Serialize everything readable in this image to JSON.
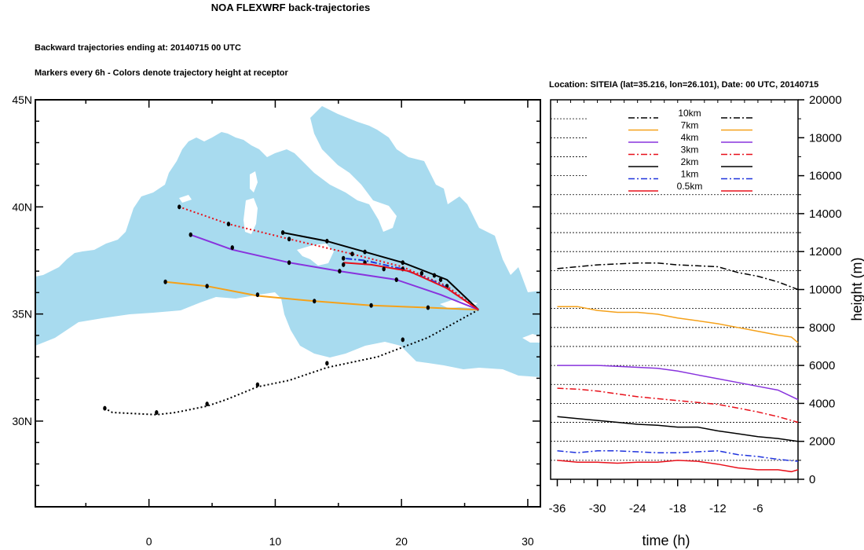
{
  "title": "NOA FLEXWRF back-trajectories",
  "subtitle1": "Backward trajectories ending at: 20140715  00 UTC",
  "subtitle2": "Markers every 6h - Colors denote trajectory height at receptor",
  "location_header": "Location: SITEIA (lat=35.216,  lon=26.101), Date: 00 UTC, 20140715",
  "chart_data": [
    {
      "type": "line",
      "kind": "trajectory-map",
      "lat_ticks": [
        "45N",
        "40N",
        "35N",
        "30N"
      ],
      "lon_ticks": [
        "0",
        "10",
        "20",
        "30"
      ],
      "lon_range": [
        -9,
        31
      ],
      "lat_range": [
        26,
        45
      ],
      "receptor": {
        "lon": 26.1,
        "lat": 35.2
      },
      "series": [
        {
          "height": "10km",
          "color": "#000000",
          "dash": "dotted",
          "points": [
            [
              26.1,
              35.2
            ],
            [
              22.1,
              33.9
            ],
            [
              18.1,
              33.0
            ],
            [
              14.1,
              32.5
            ],
            [
              11.1,
              31.9
            ],
            [
              8.6,
              31.6
            ],
            [
              6.1,
              31.0
            ],
            [
              4.6,
              30.7
            ],
            [
              2.1,
              30.4
            ],
            [
              0.6,
              30.3
            ],
            [
              -2.9,
              30.4
            ],
            [
              -3.5,
              30.6
            ]
          ],
          "markers": [
            [
              20.1,
              33.8
            ],
            [
              14.1,
              32.7
            ],
            [
              8.6,
              31.7
            ],
            [
              4.6,
              30.8
            ],
            [
              0.6,
              30.4
            ],
            [
              -3.5,
              30.6
            ]
          ]
        },
        {
          "height": "7km",
          "color": "#f5a11a",
          "dash": "solid",
          "points": [
            [
              26.1,
              35.2
            ],
            [
              22.1,
              35.3
            ],
            [
              17.6,
              35.4
            ],
            [
              13.1,
              35.6
            ],
            [
              8.6,
              35.85
            ],
            [
              4.6,
              36.3
            ],
            [
              1.3,
              36.5
            ]
          ],
          "markers": [
            [
              22.1,
              35.3
            ],
            [
              17.6,
              35.4
            ],
            [
              13.1,
              35.6
            ],
            [
              8.6,
              35.9
            ],
            [
              4.6,
              36.3
            ],
            [
              1.3,
              36.5
            ]
          ]
        },
        {
          "height": "4km",
          "color": "#8833dd",
          "dash": "solid",
          "points": [
            [
              26.1,
              35.2
            ],
            [
              23.1,
              35.9
            ],
            [
              19.6,
              36.6
            ],
            [
              15.1,
              37.0
            ],
            [
              11.1,
              37.4
            ],
            [
              6.6,
              38.0
            ],
            [
              3.3,
              38.7
            ]
          ],
          "markers": [
            [
              19.6,
              36.6
            ],
            [
              15.1,
              37.0
            ],
            [
              11.1,
              37.4
            ],
            [
              6.6,
              38.1
            ],
            [
              3.3,
              38.7
            ]
          ]
        },
        {
          "height": "3km",
          "color": "#e8101a",
          "dash": "dotted",
          "points": [
            [
              26.1,
              35.2
            ],
            [
              23.6,
              36.3
            ],
            [
              20.1,
              37.2
            ],
            [
              16.1,
              37.8
            ],
            [
              11.1,
              38.5
            ],
            [
              6.3,
              39.2
            ],
            [
              2.4,
              40.0
            ]
          ],
          "markers": [
            [
              23.6,
              36.3
            ],
            [
              16.1,
              37.8
            ],
            [
              11.1,
              38.5
            ],
            [
              6.3,
              39.2
            ],
            [
              2.4,
              40.0
            ]
          ]
        },
        {
          "height": "2km",
          "color": "#000000",
          "dash": "solid",
          "points": [
            [
              26.1,
              35.2
            ],
            [
              23.6,
              36.6
            ],
            [
              20.1,
              37.4
            ],
            [
              17.1,
              37.9
            ],
            [
              14.1,
              38.4
            ],
            [
              10.6,
              38.8
            ]
          ],
          "markers": [
            [
              22.6,
              36.8
            ],
            [
              20.1,
              37.4
            ],
            [
              17.1,
              37.9
            ],
            [
              14.1,
              38.4
            ],
            [
              10.6,
              38.8
            ]
          ]
        },
        {
          "height": "1km",
          "color": "#1f33dd",
          "dash": "dashdot",
          "points": [
            [
              26.1,
              35.2
            ],
            [
              23.1,
              36.4
            ],
            [
              20.1,
              37.1
            ],
            [
              17.1,
              37.5
            ],
            [
              15.4,
              37.6
            ]
          ],
          "markers": [
            [
              23.1,
              36.6
            ],
            [
              20.1,
              37.1
            ],
            [
              17.1,
              37.4
            ],
            [
              15.4,
              37.6
            ]
          ]
        },
        {
          "height": "0.5km",
          "color": "#e8101a",
          "dash": "solid",
          "points": [
            [
              26.1,
              35.2
            ],
            [
              23.6,
              36.2
            ],
            [
              20.6,
              37.0
            ],
            [
              17.6,
              37.3
            ],
            [
              15.4,
              37.4
            ]
          ],
          "markers": [
            [
              21.6,
              36.9
            ],
            [
              18.6,
              37.1
            ],
            [
              15.4,
              37.3
            ]
          ]
        }
      ]
    },
    {
      "type": "line",
      "kind": "height-time",
      "xlabel": "time (h)",
      "ylabel": "height (m)",
      "x_ticks": [
        -36,
        -30,
        -24,
        -18,
        -12,
        -6
      ],
      "xlim": [
        -37,
        0
      ],
      "ylim": [
        0,
        20000
      ],
      "y_ticks": [
        0,
        2000,
        4000,
        6000,
        8000,
        10000,
        12000,
        14000,
        16000,
        18000,
        20000
      ],
      "grid": "horizontal dotted",
      "legend_position": "top",
      "series": [
        {
          "name": "10km",
          "color": "#000000",
          "dash": "dashdot",
          "x": [
            -36,
            -33,
            -30,
            -27,
            -24,
            -21,
            -18,
            -15,
            -12,
            -9,
            -6,
            -3,
            0
          ],
          "y": [
            11100,
            11200,
            11300,
            11350,
            11400,
            11400,
            11300,
            11250,
            11200,
            10900,
            10700,
            10400,
            10000
          ]
        },
        {
          "name": "7km",
          "color": "#f5a11a",
          "dash": "solid",
          "x": [
            -36,
            -33,
            -30,
            -27,
            -24,
            -21,
            -18,
            -15,
            -12,
            -9,
            -6,
            -3,
            -1,
            0
          ],
          "y": [
            9100,
            9100,
            8900,
            8800,
            8800,
            8700,
            8500,
            8350,
            8200,
            8000,
            7800,
            7600,
            7500,
            7200
          ]
        },
        {
          "name": "4km",
          "color": "#8833dd",
          "dash": "solid",
          "x": [
            -36,
            -33,
            -30,
            -27,
            -24,
            -21,
            -18,
            -15,
            -12,
            -9,
            -6,
            -3,
            0
          ],
          "y": [
            6000,
            6000,
            6000,
            5950,
            5900,
            5850,
            5700,
            5500,
            5300,
            5100,
            4900,
            4700,
            4200
          ]
        },
        {
          "name": "3km",
          "color": "#e8101a",
          "dash": "dashdot",
          "x": [
            -36,
            -33,
            -30,
            -27,
            -24,
            -21,
            -18,
            -15,
            -12,
            -9,
            -6,
            -3,
            0
          ],
          "y": [
            4800,
            4750,
            4650,
            4500,
            4350,
            4250,
            4150,
            4050,
            3950,
            3750,
            3550,
            3300,
            3000
          ]
        },
        {
          "name": "2km",
          "color": "#000000",
          "dash": "solid",
          "x": [
            -36,
            -33,
            -30,
            -27,
            -24,
            -21,
            -18,
            -15,
            -12,
            -9,
            -6,
            -3,
            0
          ],
          "y": [
            3300,
            3200,
            3100,
            3000,
            2900,
            2850,
            2750,
            2750,
            2550,
            2400,
            2250,
            2150,
            2000
          ]
        },
        {
          "name": "1km",
          "color": "#1f33dd",
          "dash": "dashdot",
          "x": [
            -36,
            -33,
            -30,
            -27,
            -24,
            -21,
            -18,
            -15,
            -12,
            -9,
            -6,
            -3,
            0
          ],
          "y": [
            1500,
            1400,
            1500,
            1500,
            1450,
            1400,
            1400,
            1450,
            1500,
            1300,
            1200,
            1050,
            950
          ]
        },
        {
          "name": "0.5km",
          "color": "#e8101a",
          "dash": "solid",
          "x": [
            -36,
            -33,
            -30,
            -27,
            -24,
            -21,
            -18,
            -15,
            -12,
            -9,
            -6,
            -3,
            -1,
            0
          ],
          "y": [
            1000,
            900,
            900,
            850,
            900,
            900,
            1000,
            950,
            800,
            600,
            500,
            500,
            400,
            500
          ]
        }
      ]
    }
  ]
}
